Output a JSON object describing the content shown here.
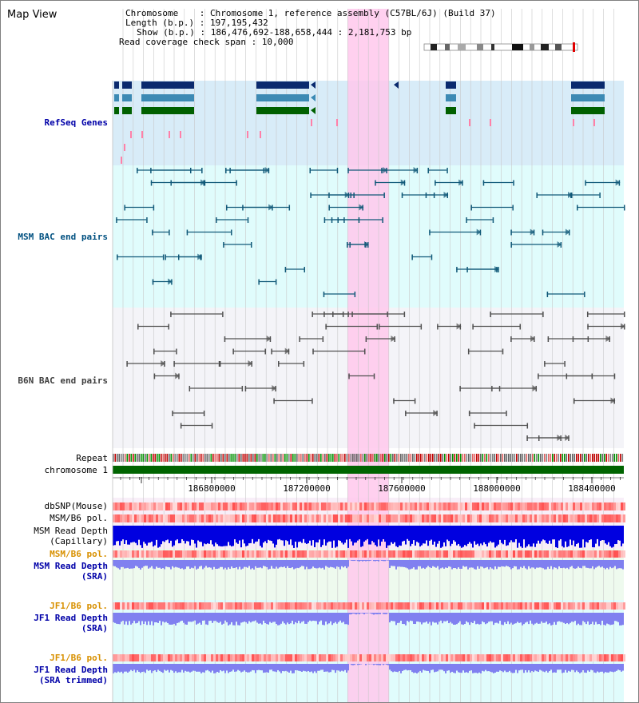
{
  "title": "Map View",
  "info": {
    "chromosome": "Chromosome    : Chromosome 1, reference assembly (C57BL/6J) (Build 37)",
    "length": "Length (b.p.) : 197,195,432",
    "show": "Show (b.p.) : 186,476,692-188,658,444 : 2,181,753 bp",
    "read_span": "Read coverage check span : 10,000"
  },
  "tracks": {
    "refseq": "RefSeq Genes",
    "msm_bac": "MSM BAC end pairs",
    "b6n_bac": "B6N BAC end pairs",
    "repeat": "Repeat",
    "chromosome": "chromosome 1",
    "dbsnp": "dbSNP(Mouse)",
    "msm_b6_pol_1": "MSM/B6 pol.",
    "msm_read_depth_cap_1": "MSM Read Depth",
    "msm_read_depth_cap_2": "(Capillary)",
    "msm_b6_pol_2": "MSM/B6 pol.",
    "msm_read_depth_sra_1": "MSM Read Depth",
    "msm_read_depth_sra_2": "(SRA)",
    "jf1_b6_pol_1": "JF1/B6 pol.",
    "jf1_read_depth_1": "JF1 Read Depth",
    "jf1_read_depth_2": "(SRA)",
    "jf1_b6_pol_2": "JF1/B6 pol.",
    "jf1_read_depth_trim_1": "JF1 Read Depth",
    "jf1_read_depth_trim_2": "(SRA trimmed)"
  },
  "ruler_ticks": [
    "186800000",
    "187200000",
    "187600000",
    "188000000",
    "188400000"
  ],
  "colors": {
    "refseq_bg": "#d8ecf8",
    "msm_bg": "#e0fcfc",
    "b6n_bg": "#f4f4f8",
    "highlight": "#ffc8ec",
    "chromosome": "#006400",
    "read_depth_dark": "#0000e0",
    "read_depth_light": "#8080f0",
    "pol_red": "#ff6060",
    "msm_line": "#105878",
    "b6n_line": "#505050"
  }
}
